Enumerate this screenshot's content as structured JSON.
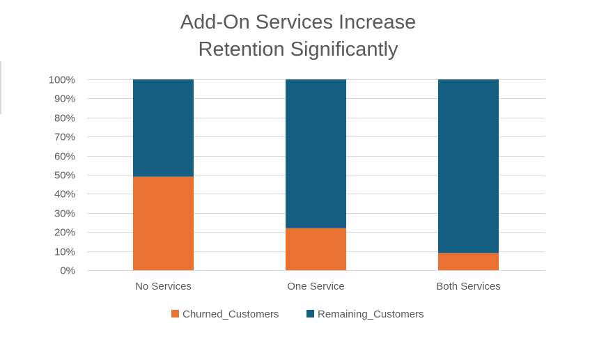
{
  "chart_data": {
    "type": "bar",
    "stacked": true,
    "title": "Add-On Services Increase Retention Significantly",
    "title_lines": [
      "Add-On Services Increase",
      "Retention Significantly"
    ],
    "categories": [
      "No Services",
      "One Service",
      "Both Services"
    ],
    "series": [
      {
        "name": "Churned_Customers",
        "values": [
          49,
          22,
          9
        ],
        "color": "#e97132"
      },
      {
        "name": "Remaining_Customers",
        "values": [
          51,
          78,
          91
        ],
        "color": "#156082"
      }
    ],
    "y_ticks": [
      "0%",
      "10%",
      "20%",
      "30%",
      "40%",
      "50%",
      "60%",
      "70%",
      "80%",
      "90%",
      "100%"
    ],
    "ylim": [
      0,
      100
    ],
    "grid": true,
    "legend_position": "bottom"
  }
}
